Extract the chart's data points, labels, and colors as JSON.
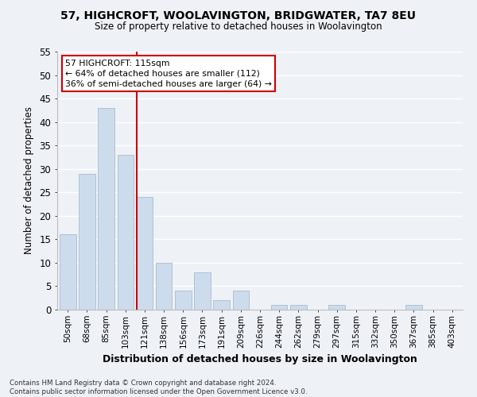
{
  "title": "57, HIGHCROFT, WOOLAVINGTON, BRIDGWATER, TA7 8EU",
  "subtitle": "Size of property relative to detached houses in Woolavington",
  "xlabel": "Distribution of detached houses by size in Woolavington",
  "ylabel": "Number of detached properties",
  "categories": [
    "50sqm",
    "68sqm",
    "85sqm",
    "103sqm",
    "121sqm",
    "138sqm",
    "156sqm",
    "173sqm",
    "191sqm",
    "209sqm",
    "226sqm",
    "244sqm",
    "262sqm",
    "279sqm",
    "297sqm",
    "315sqm",
    "332sqm",
    "350sqm",
    "367sqm",
    "385sqm",
    "403sqm"
  ],
  "values": [
    16,
    29,
    43,
    33,
    24,
    10,
    4,
    8,
    2,
    4,
    0,
    1,
    1,
    0,
    1,
    0,
    0,
    0,
    1,
    0,
    0
  ],
  "bar_color": "#ccdcec",
  "bar_edge_color": "#aabccc",
  "vline_x_index": 4,
  "vline_color": "#cc0000",
  "annotation_line1": "57 HIGHCROFT: 115sqm",
  "annotation_line2": "← 64% of detached houses are smaller (112)",
  "annotation_line3": "36% of semi-detached houses are larger (64) →",
  "annotation_box_color": "#ffffff",
  "annotation_box_edge": "#cc0000",
  "ylim": [
    0,
    55
  ],
  "yticks": [
    0,
    5,
    10,
    15,
    20,
    25,
    30,
    35,
    40,
    45,
    50,
    55
  ],
  "bg_color": "#eef2f7",
  "grid_color": "#ffffff",
  "footnote": "Contains HM Land Registry data © Crown copyright and database right 2024.\nContains public sector information licensed under the Open Government Licence v3.0."
}
